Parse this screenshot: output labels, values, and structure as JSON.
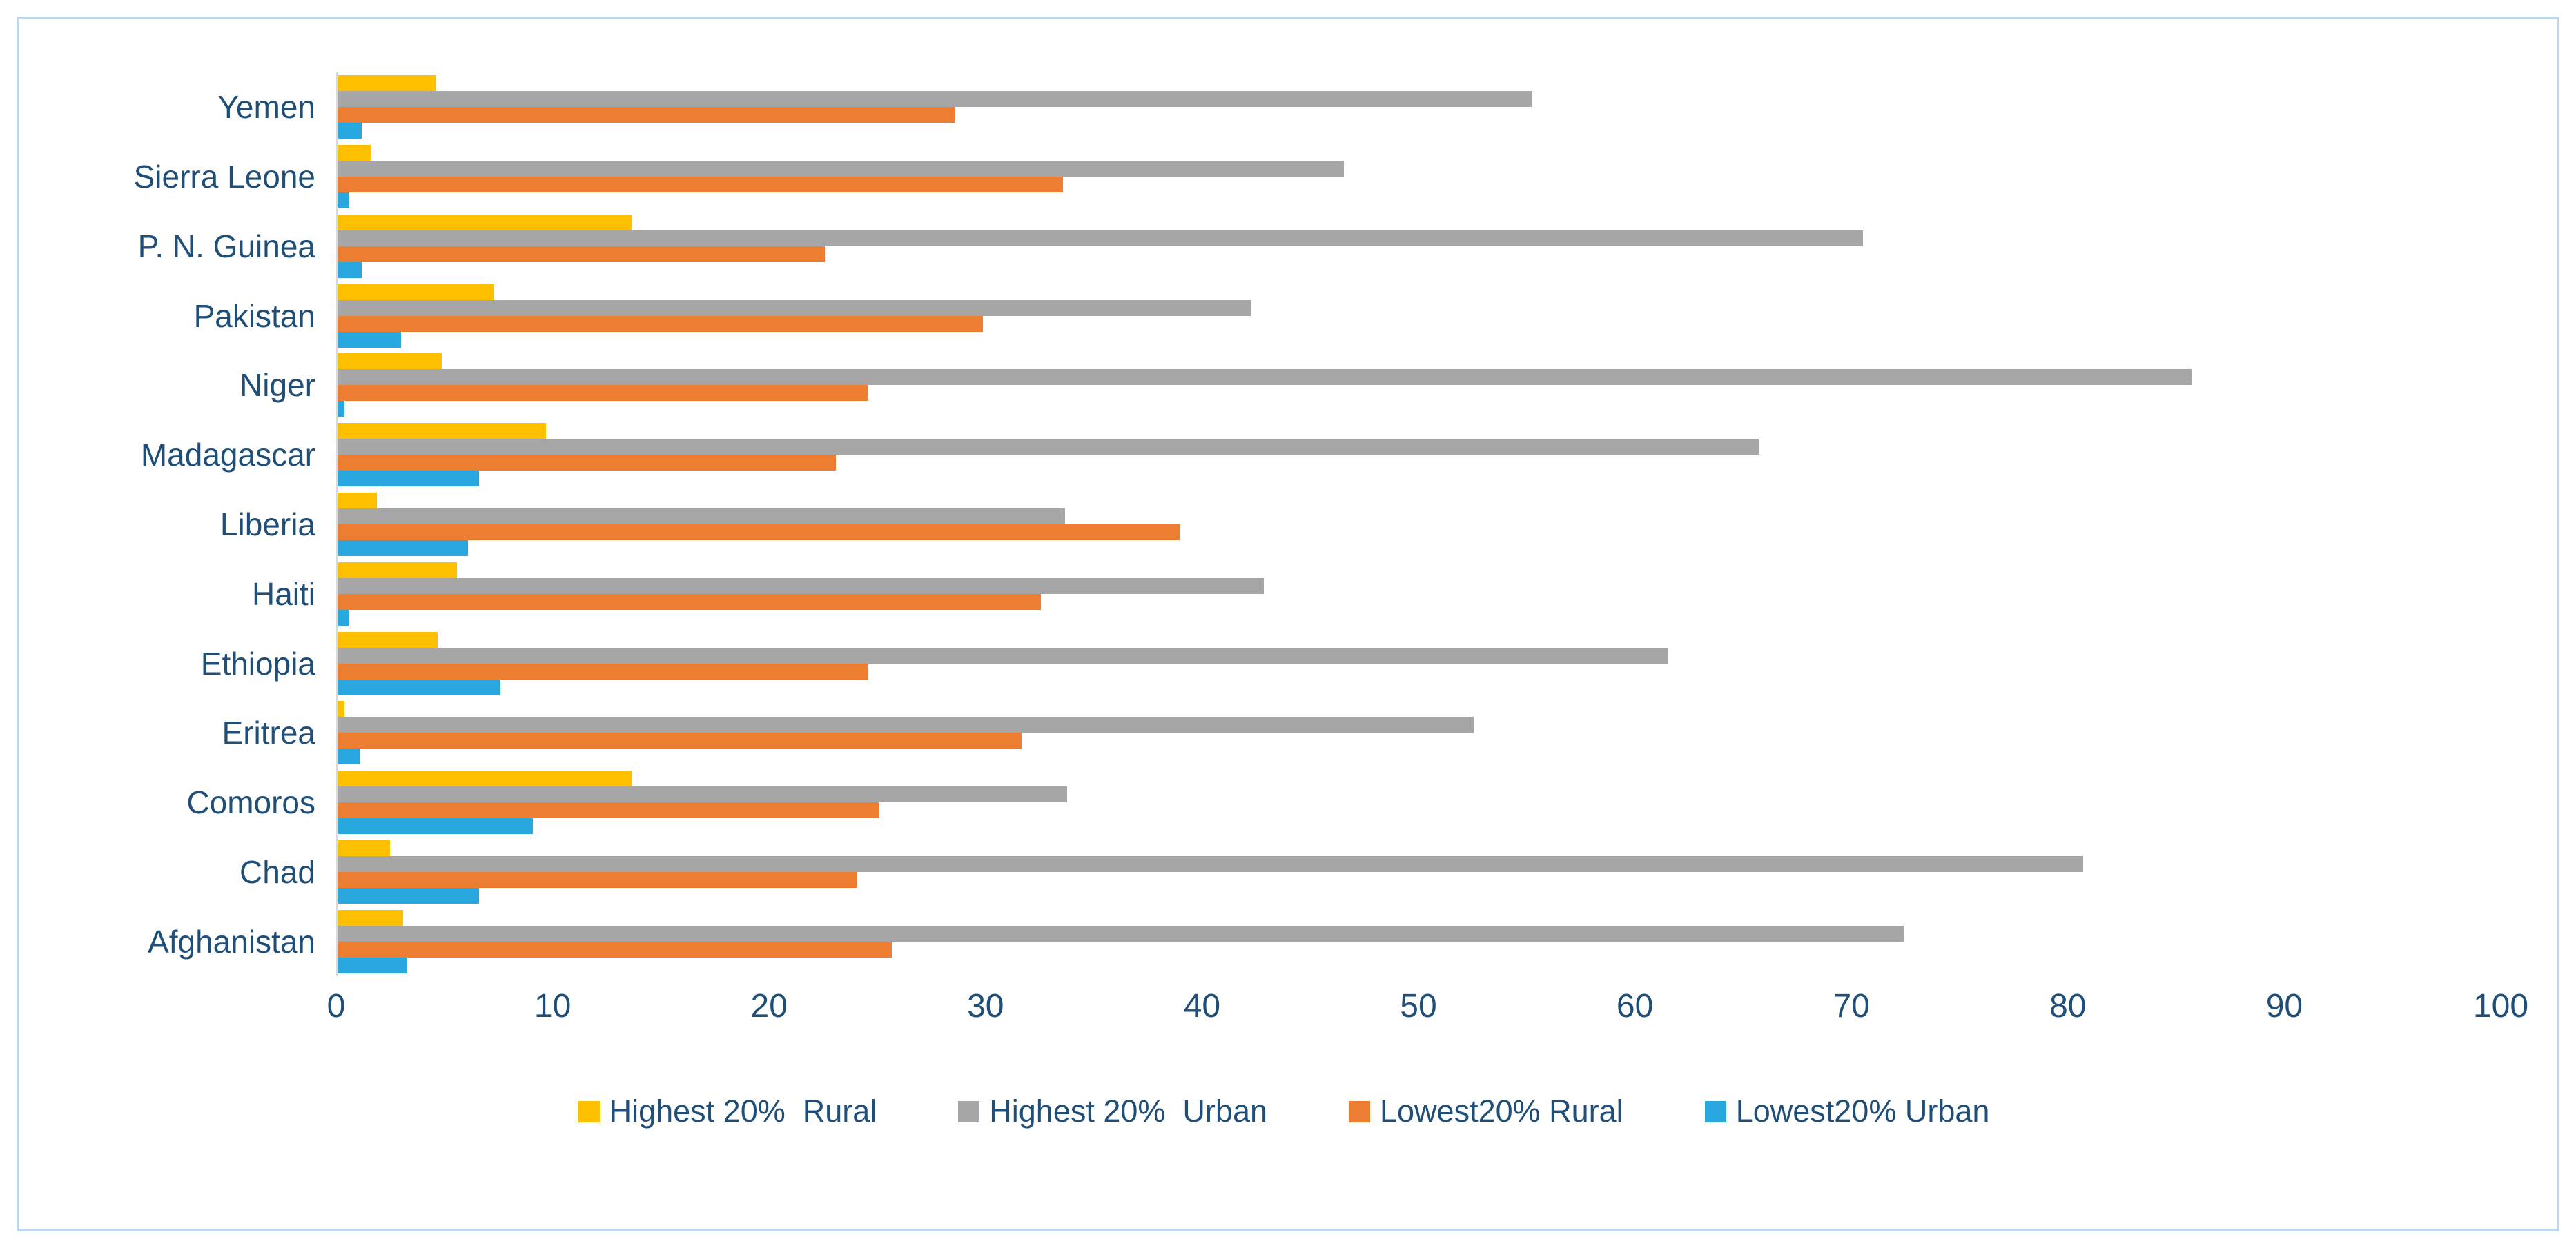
{
  "chart": {
    "frame_border_color": "#BDD7EE",
    "axis_line_color": "#D9D9D9",
    "label_color": "#1F4E79",
    "background_color": "#FFFFFF"
  },
  "chart_data": {
    "type": "bar",
    "orientation": "horizontal",
    "title": "",
    "xlabel": "",
    "ylabel": "",
    "xlim": [
      0,
      100
    ],
    "x_ticks": [
      0,
      10,
      20,
      30,
      40,
      50,
      60,
      70,
      80,
      90,
      100
    ],
    "grid": false,
    "legend_position": "bottom",
    "categories": [
      "Yemen",
      "Sierra Leone",
      "P. N. Guinea",
      "Pakistan",
      "Niger",
      "Madagascar",
      "Liberia",
      "Haiti",
      "Ethiopia",
      "Eritrea",
      "Comoros",
      "Chad",
      "Afghanistan"
    ],
    "series": [
      {
        "name": "Highest 20%  Rural",
        "color": "#FFC000",
        "values": [
          4.5,
          1.5,
          13.6,
          7.2,
          4.8,
          9.6,
          1.8,
          5.5,
          4.6,
          0.3,
          13.6,
          2.4,
          3.0
        ]
      },
      {
        "name": "Highest 20%  Urban",
        "color": "#A6A6A6",
        "values": [
          55.2,
          46.5,
          70.5,
          42.2,
          85.7,
          65.7,
          33.6,
          42.8,
          61.5,
          52.5,
          33.7,
          80.7,
          72.4
        ]
      },
      {
        "name": "Lowest20% Rural",
        "color": "#ED7D31",
        "values": [
          28.5,
          33.5,
          22.5,
          29.8,
          24.5,
          23.0,
          38.9,
          32.5,
          24.5,
          31.6,
          25.0,
          24.0,
          25.6
        ]
      },
      {
        "name": "Lowest20% Urban",
        "color": "#29A8E0",
        "values": [
          1.1,
          0.5,
          1.1,
          2.9,
          0.3,
          6.5,
          6.0,
          0.5,
          7.5,
          1.0,
          9.0,
          6.5,
          3.2
        ]
      }
    ]
  }
}
